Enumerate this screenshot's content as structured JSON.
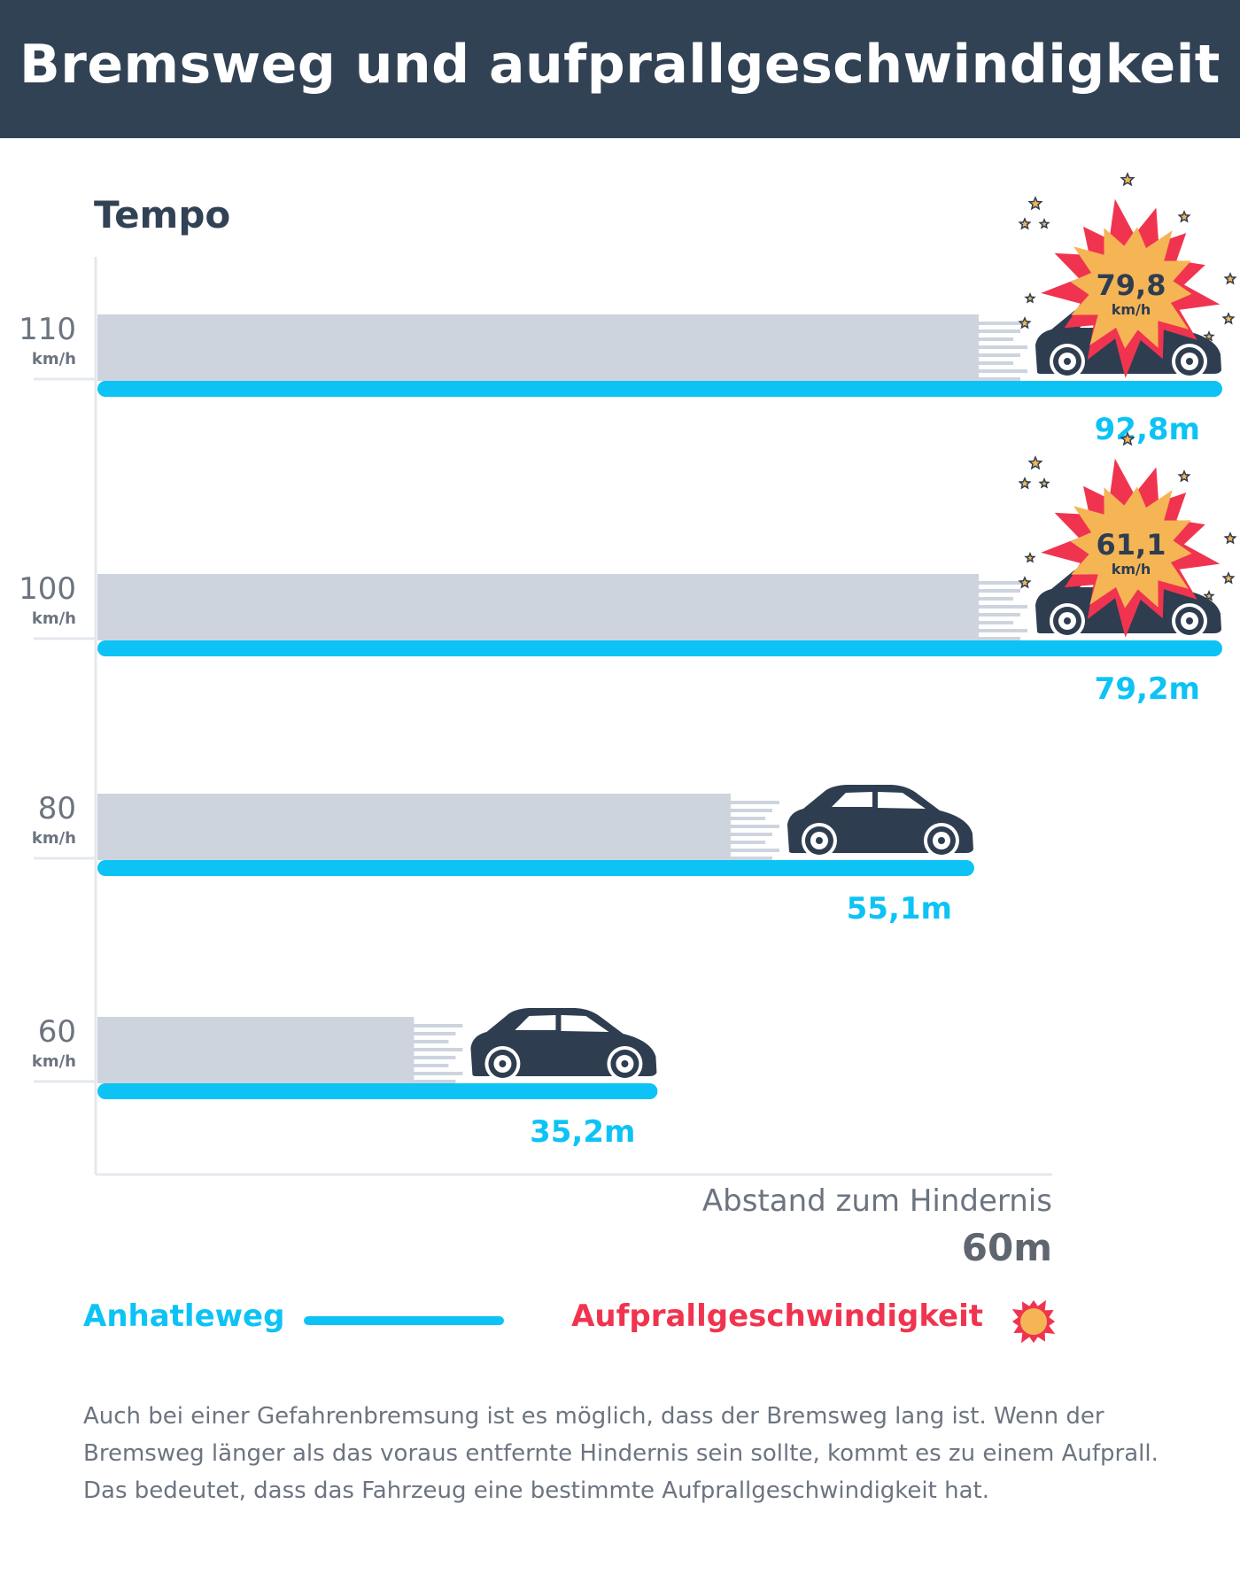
{
  "header": {
    "title": "Bremsweg und aufprallgeschwindigkeit"
  },
  "y_axis_title": "Tempo",
  "obstacle": {
    "caption": "Abstand zum Hindernis",
    "value": "60m"
  },
  "legend": {
    "stop_label": "Anhatleweg",
    "impact_label": "Aufprallgeschwindigkeit"
  },
  "note": "Auch bei einer Gefahrenbremsung ist es möglich, dass der Bremsweg lang ist. Wenn der Bremsweg länger als das voraus entfernte Hindernis sein sollte, kommt es zu einem Aufprall. Das bedeutet, dass das Fahrzeug eine bestimmte Aufprallgeschwindigkeit hat.",
  "colors": {
    "header": "#324255",
    "stop_line": "#0dc3f5",
    "brake_zone": "#cdd4de",
    "car": "#2f3d50",
    "impact_text": "#f0344f",
    "burst_outer": "#f0344f",
    "burst_inner": "#f5b555"
  },
  "chart_data": {
    "type": "bar",
    "orientation": "horizontal",
    "y_title": "Tempo",
    "unit": "km/h",
    "obstacle_distance_m": 60,
    "obstacle_label": "Abstand zum Hindernis",
    "speeds": [
      {
        "speed": "110",
        "unit": "km/h",
        "stop_distance_m": 92.8,
        "distance_label": "92,8m",
        "impact_speed": "79,8",
        "impact_unit": "km/h"
      },
      {
        "speed": "100",
        "unit": "km/h",
        "stop_distance_m": 79.2,
        "distance_label": "79,2m",
        "impact_speed": "61,1",
        "impact_unit": "km/h"
      },
      {
        "speed": "80",
        "unit": "km/h",
        "stop_distance_m": 55.1,
        "distance_label": "55,1m",
        "impact_speed": null,
        "impact_unit": null
      },
      {
        "speed": "60",
        "unit": "km/h",
        "stop_distance_m": 35.2,
        "distance_label": "35,2m",
        "impact_speed": null,
        "impact_unit": null
      }
    ]
  }
}
